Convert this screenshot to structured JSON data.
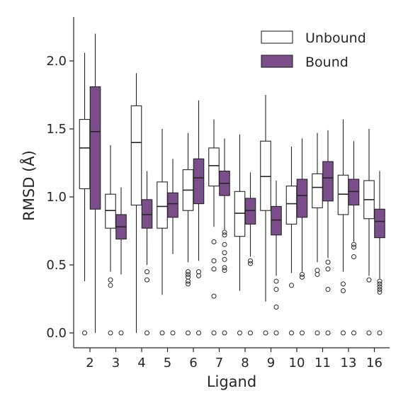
{
  "chart_data": {
    "type": "box",
    "xlabel": "Ligand",
    "ylabel": "RMSD (Å)",
    "ylim": [
      -0.1,
      2.3
    ],
    "yticks": [
      0.0,
      0.5,
      1.0,
      1.5,
      2.0
    ],
    "ytick_labels": [
      "0.0",
      "0.5",
      "1.0",
      "1.5",
      "2.0"
    ],
    "categories": [
      "2",
      "3",
      "4",
      "5",
      "6",
      "7",
      "8",
      "9",
      "10",
      "11",
      "13",
      "16"
    ],
    "legend": {
      "placement": "top-right"
    },
    "series": [
      {
        "name": "Unbound",
        "color": "#ffffff",
        "boxes": [
          {
            "whislo": 0.38,
            "q1": 1.06,
            "med": 1.36,
            "q3": 1.57,
            "whishi": 2.06,
            "fliers": [
              0.0
            ]
          },
          {
            "whislo": 0.45,
            "q1": 0.77,
            "med": 0.9,
            "q3": 1.02,
            "whishi": 1.38,
            "fliers": [
              0.39,
              0.35,
              0.0
            ]
          },
          {
            "whislo": 0.0,
            "q1": 0.94,
            "med": 1.4,
            "q3": 1.67,
            "whishi": 1.91,
            "fliers": []
          },
          {
            "whislo": 0.28,
            "q1": 0.77,
            "med": 0.93,
            "q3": 1.11,
            "whishi": 1.5,
            "fliers": [
              0.0
            ]
          },
          {
            "whislo": 0.52,
            "q1": 0.9,
            "med": 1.05,
            "q3": 1.2,
            "whishi": 1.47,
            "fliers": [
              0.45,
              0.43,
              0.41,
              0.38,
              0.36,
              0.0
            ]
          },
          {
            "whislo": 0.78,
            "q1": 1.08,
            "med": 1.23,
            "q3": 1.36,
            "whishi": 1.57,
            "fliers": [
              0.67,
              0.53,
              0.47,
              0.27,
              0.0
            ]
          },
          {
            "whislo": 0.31,
            "q1": 0.71,
            "med": 0.88,
            "q3": 1.04,
            "whishi": 1.46,
            "fliers": [
              0.0
            ]
          },
          {
            "whislo": 0.23,
            "q1": 0.9,
            "med": 1.15,
            "q3": 1.41,
            "whishi": 1.75,
            "fliers": [
              0.0
            ]
          },
          {
            "whislo": 0.44,
            "q1": 0.8,
            "med": 0.95,
            "q3": 1.08,
            "whishi": 1.37,
            "fliers": [
              0.35,
              0.0
            ]
          },
          {
            "whislo": 0.52,
            "q1": 0.92,
            "med": 1.07,
            "q3": 1.17,
            "whishi": 1.47,
            "fliers": [
              0.46,
              0.43,
              0.0
            ]
          },
          {
            "whislo": 0.45,
            "q1": 0.87,
            "med": 1.02,
            "q3": 1.16,
            "whishi": 1.57,
            "fliers": [
              0.36,
              0.31,
              0.0
            ]
          },
          {
            "whislo": 0.42,
            "q1": 0.84,
            "med": 0.98,
            "q3": 1.12,
            "whishi": 1.5,
            "fliers": [
              0.39,
              0.0
            ]
          }
        ]
      },
      {
        "name": "Bound",
        "color": "#7b4d8a",
        "boxes": [
          {
            "whislo": 0.0,
            "q1": 0.91,
            "med": 1.48,
            "q3": 1.81,
            "whishi": 2.2,
            "fliers": []
          },
          {
            "whislo": 0.43,
            "q1": 0.69,
            "med": 0.78,
            "q3": 0.87,
            "whishi": 1.07,
            "fliers": [
              0.0
            ]
          },
          {
            "whislo": 0.5,
            "q1": 0.77,
            "med": 0.87,
            "q3": 0.98,
            "whishi": 1.19,
            "fliers": [
              0.45,
              0.39,
              0.0
            ]
          },
          {
            "whislo": 0.58,
            "q1": 0.85,
            "med": 0.95,
            "q3": 1.03,
            "whishi": 1.28,
            "fliers": [
              0.0
            ]
          },
          {
            "whislo": 0.53,
            "q1": 0.95,
            "med": 1.14,
            "q3": 1.28,
            "whishi": 1.71,
            "fliers": [
              0.45,
              0.42,
              0.0
            ]
          },
          {
            "whislo": 0.76,
            "q1": 1.01,
            "med": 1.1,
            "q3": 1.19,
            "whishi": 1.43,
            "fliers": [
              0.74,
              0.72,
              0.65,
              0.59,
              0.54,
              0.48,
              0.46,
              0.0
            ]
          },
          {
            "whislo": 0.56,
            "q1": 0.8,
            "med": 0.9,
            "q3": 0.99,
            "whishi": 1.18,
            "fliers": [
              0.53,
              0.51,
              0.0
            ]
          },
          {
            "whislo": 0.42,
            "q1": 0.72,
            "med": 0.83,
            "q3": 0.93,
            "whishi": 1.12,
            "fliers": [
              0.38,
              0.32,
              0.19,
              0.0
            ]
          },
          {
            "whislo": 0.45,
            "q1": 0.85,
            "med": 1.01,
            "q3": 1.13,
            "whishi": 1.43,
            "fliers": [
              0.43,
              0.41,
              0.0
            ]
          },
          {
            "whislo": 0.55,
            "q1": 0.97,
            "med": 1.14,
            "q3": 1.26,
            "whishi": 1.49,
            "fliers": [
              0.52,
              0.47,
              0.32,
              0.0
            ]
          },
          {
            "whislo": 0.67,
            "q1": 0.94,
            "med": 1.04,
            "q3": 1.13,
            "whishi": 1.41,
            "fliers": [
              0.65,
              0.63,
              0.56,
              0.0
            ]
          },
          {
            "whislo": 0.4,
            "q1": 0.7,
            "med": 0.82,
            "q3": 0.91,
            "whishi": 1.19,
            "fliers": [
              0.38,
              0.36,
              0.34,
              0.32,
              0.3,
              0.0
            ]
          }
        ]
      }
    ]
  }
}
